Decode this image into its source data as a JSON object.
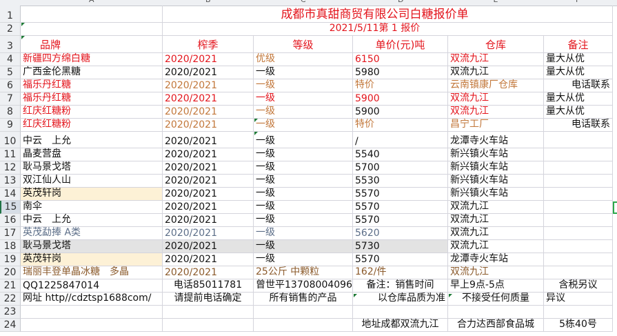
{
  "columns": [
    "A",
    "B",
    "C",
    "D",
    "E",
    "F"
  ],
  "palette": {
    "k": "#111111",
    "r": "#e3141c",
    "o": "#c2773a",
    "g": "#5c6e88",
    "b": "#8b5a2b"
  },
  "fills": {
    "yellow": "#fdf1d6",
    "gray": "#e3e3e3"
  },
  "selected_row": 15,
  "title": "成都市真甜商贸有限公司白糖报价单",
  "subtitle": "2021/5/11第 1 报价",
  "rows": [
    {
      "n": "3",
      "cells": [
        {
          "t": "品牌",
          "c": "r",
          "a": "pad"
        },
        {
          "t": "榨季",
          "c": "r",
          "a": "center"
        },
        {
          "t": "等级",
          "c": "r",
          "a": "center"
        },
        {
          "t": "单价(元)吨",
          "c": "r",
          "a": "center"
        },
        {
          "t": "仓库",
          "c": "r",
          "a": "center"
        },
        {
          "t": "备注",
          "c": "r",
          "a": "center"
        }
      ]
    },
    {
      "n": "4",
      "cells": [
        {
          "t": "新疆四方绵白糖",
          "c": "r"
        },
        {
          "t": "2020/2021",
          "c": "r"
        },
        {
          "t": "优级",
          "c": "o"
        },
        {
          "t": "6150",
          "c": "r"
        },
        {
          "t": "双流九江",
          "c": "r"
        },
        {
          "t": "量大从优",
          "c": "k"
        }
      ]
    },
    {
      "n": "5",
      "cells": [
        {
          "t": "广西金伦黑糖",
          "c": "k"
        },
        {
          "t": "2020/2021",
          "c": "k"
        },
        {
          "t": "一级",
          "c": "k"
        },
        {
          "t": "5980",
          "c": "k"
        },
        {
          "t": "双流九江",
          "c": "k"
        },
        {
          "t": "量大从优",
          "c": "k"
        }
      ]
    },
    {
      "n": "6",
      "cells": [
        {
          "t": "福乐丹红糖",
          "c": "r"
        },
        {
          "t": "2020/2021",
          "c": "o"
        },
        {
          "t": "一级",
          "c": "o"
        },
        {
          "t": "特价",
          "c": "o"
        },
        {
          "t": "云南镇康厂仓库",
          "c": "o"
        },
        {
          "t": "电话联系",
          "c": "k",
          "a": "right"
        }
      ]
    },
    {
      "n": "7",
      "cells": [
        {
          "t": "福乐丹红糖",
          "c": "r"
        },
        {
          "t": "2020/2021",
          "c": "r"
        },
        {
          "t": "一级",
          "c": "r"
        },
        {
          "t": "5900",
          "c": "r"
        },
        {
          "t": "双流九江",
          "c": "r"
        },
        {
          "t": "量大从优",
          "c": "k"
        }
      ]
    },
    {
      "n": "8",
      "cells": [
        {
          "t": "红庆红糖粉",
          "c": "r"
        },
        {
          "t": "2020/2021",
          "c": "o"
        },
        {
          "t": "一级",
          "c": "o"
        },
        {
          "t": "5900",
          "c": "k"
        },
        {
          "t": "双流九江",
          "c": "r"
        },
        {
          "t": "量大从优",
          "c": "k"
        }
      ]
    },
    {
      "n": "9",
      "cells": [
        {
          "t": "红庆红糖粉",
          "c": "r"
        },
        {
          "t": "2020/2021",
          "c": "o"
        },
        {
          "t": "一级",
          "c": "o"
        },
        {
          "t": "特价",
          "c": "o"
        },
        {
          "t": "昌宁工厂",
          "c": "o"
        },
        {
          "t": "电话联系",
          "c": "k",
          "a": "right"
        }
      ]
    },
    {
      "n": "10",
      "cells": [
        {
          "t": "中云　上允",
          "c": "k"
        },
        {
          "t": "2020/2021",
          "c": "k"
        },
        {
          "t": "一级",
          "c": "k"
        },
        {
          "t": "/",
          "c": "k"
        },
        {
          "t": "龙潭寺火车站",
          "c": "k"
        },
        {
          "t": "",
          "c": "k"
        }
      ]
    },
    {
      "n": "11",
      "cells": [
        {
          "t": "晶麦营盘",
          "c": "k"
        },
        {
          "t": "2020/2021",
          "c": "k"
        },
        {
          "t": "一级",
          "c": "k"
        },
        {
          "t": "5540",
          "c": "k"
        },
        {
          "t": "新兴镇火车站",
          "c": "k"
        },
        {
          "t": "",
          "c": "k"
        }
      ]
    },
    {
      "n": "12",
      "cells": [
        {
          "t": "耿马景戈塔",
          "c": "k"
        },
        {
          "t": "2020/2021",
          "c": "k"
        },
        {
          "t": "一级",
          "c": "k"
        },
        {
          "t": "5700",
          "c": "k"
        },
        {
          "t": "新兴镇火车站",
          "c": "k"
        },
        {
          "t": "",
          "c": "k"
        }
      ]
    },
    {
      "n": "13",
      "cells": [
        {
          "t": "双江仙人山",
          "c": "k"
        },
        {
          "t": "2020/2021",
          "c": "k"
        },
        {
          "t": "一级",
          "c": "k"
        },
        {
          "t": "5530",
          "c": "k"
        },
        {
          "t": "新兴镇火车站",
          "c": "k"
        },
        {
          "t": "",
          "c": "k"
        }
      ]
    },
    {
      "n": "14",
      "cells": [
        {
          "t": "英茂轩岗",
          "c": "k",
          "bg": "yellow"
        },
        {
          "t": "2020/2021",
          "c": "k"
        },
        {
          "t": "一级",
          "c": "k"
        },
        {
          "t": "5570",
          "c": "k"
        },
        {
          "t": "新兴镇火车站",
          "c": "k"
        },
        {
          "t": "",
          "c": "k"
        }
      ]
    },
    {
      "n": "15",
      "cells": [
        {
          "t": "南伞",
          "c": "k"
        },
        {
          "t": "2020/2021",
          "c": "k"
        },
        {
          "t": "一级",
          "c": "k"
        },
        {
          "t": "5570",
          "c": "k"
        },
        {
          "t": "双流九江",
          "c": "k"
        },
        {
          "t": "",
          "c": "k"
        }
      ]
    },
    {
      "n": "16",
      "cells": [
        {
          "t": "中云　上允",
          "c": "k"
        },
        {
          "t": "2020/2021",
          "c": "k"
        },
        {
          "t": "一级",
          "c": "k"
        },
        {
          "t": "5570",
          "c": "k"
        },
        {
          "t": "双流九江",
          "c": "k"
        },
        {
          "t": "",
          "c": "k"
        }
      ]
    },
    {
      "n": "17",
      "cells": [
        {
          "t": "英茂勐捧 A类",
          "c": "g"
        },
        {
          "t": "2020/2021",
          "c": "g"
        },
        {
          "t": "一级",
          "c": "g"
        },
        {
          "t": "5620",
          "c": "g"
        },
        {
          "t": "双流九江",
          "c": "k"
        },
        {
          "t": "",
          "c": "k"
        }
      ]
    },
    {
      "n": "18",
      "cells": [
        {
          "t": "耿马景戈塔",
          "c": "k",
          "bg": "gray"
        },
        {
          "t": "2020/2021",
          "c": "k",
          "bg": "gray"
        },
        {
          "t": "一级",
          "c": "k",
          "bg": "gray"
        },
        {
          "t": "5730",
          "c": "k",
          "bg": "gray"
        },
        {
          "t": "双流九江",
          "c": "k"
        },
        {
          "t": "",
          "c": "k"
        }
      ]
    },
    {
      "n": "19",
      "cells": [
        {
          "t": "英茂轩岗",
          "c": "k",
          "bg": "yellow"
        },
        {
          "t": "2020/2021",
          "c": "k"
        },
        {
          "t": "一级",
          "c": "k"
        },
        {
          "t": "5570",
          "c": "k"
        },
        {
          "t": "龙潭寺火车站",
          "c": "k"
        },
        {
          "t": "",
          "c": "k"
        }
      ]
    },
    {
      "n": "20",
      "cells": [
        {
          "t": "瑞丽丰登单晶冰糖　多晶",
          "c": "b"
        },
        {
          "t": "2020/2021",
          "c": "b"
        },
        {
          "t": "25公斤 中颗粒",
          "c": "b"
        },
        {
          "t": "162/件",
          "c": "b"
        },
        {
          "t": "双流九江",
          "c": "b"
        },
        {
          "t": "",
          "c": "k"
        }
      ]
    },
    {
      "n": "21",
      "cells": [
        {
          "t": "QQ1225847014",
          "c": "k"
        },
        {
          "t": "电话85011781",
          "c": "k",
          "a": "center"
        },
        {
          "t": "曾世平13708004096",
          "c": "k"
        },
        {
          "t": "备注：销售时间",
          "c": "k",
          "a": "center"
        },
        {
          "t": "早上9点-5点",
          "c": "k"
        },
        {
          "t": "含税另议",
          "c": "k",
          "a": "center"
        }
      ]
    },
    {
      "n": "22",
      "cells": [
        {
          "t": "网址 http//cdztsp1688com/",
          "c": "k"
        },
        {
          "t": "请提前电话确定",
          "c": "k",
          "a": "center"
        },
        {
          "t": "所有销售的产品",
          "c": "k",
          "a": "center"
        },
        {
          "t": "以仓库品质为准",
          "c": "k",
          "a": "right"
        },
        {
          "t": "不接受任何质量",
          "c": "k",
          "a": "center"
        },
        {
          "t": "异议",
          "c": "k"
        }
      ]
    },
    {
      "n": "23",
      "cells": [
        {
          "t": "",
          "c": "k"
        },
        {
          "t": "",
          "c": "k"
        },
        {
          "t": "",
          "c": "k"
        },
        {
          "t": "",
          "c": "k"
        },
        {
          "t": "",
          "c": "k"
        },
        {
          "t": "",
          "c": "k"
        }
      ]
    },
    {
      "n": "24",
      "cells": [
        {
          "t": "",
          "c": "k"
        },
        {
          "t": "",
          "c": "k"
        },
        {
          "t": "",
          "c": "k"
        },
        {
          "t": "地址成都双流九江",
          "c": "k",
          "a": "center"
        },
        {
          "t": "合力达西部食品城",
          "c": "k",
          "a": "center"
        },
        {
          "t": "5栋40号",
          "c": "k",
          "a": "center"
        }
      ]
    }
  ]
}
